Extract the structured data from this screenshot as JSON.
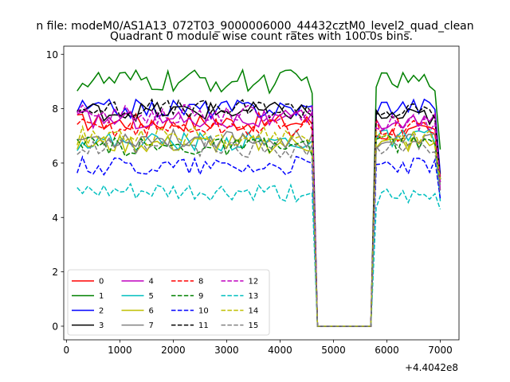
{
  "figure": {
    "suptitle": "n file: modeM0/AS1A13_072T03_9000006000_44432cztM0_level2_quad_clean",
    "offset_label": "+4.4042e8"
  },
  "chart_data": {
    "type": "line",
    "title": "Quadrant 0 module wise count rates with 100.0s bins.",
    "xlabel": "",
    "ylabel": "",
    "xlim": [
      -50,
      7350
    ],
    "ylim": [
      -0.5,
      10.3
    ],
    "x_offset": 440420000,
    "xticks": [
      0,
      1000,
      2000,
      3000,
      4000,
      5000,
      6000,
      7000
    ],
    "yticks": [
      0,
      2,
      4,
      6,
      8,
      10
    ],
    "grid": false,
    "legend_position": "lower-left",
    "legend_columns": 4,
    "x_start": 200,
    "x_step": 100,
    "on1_end": 4600,
    "gap_low": 4700,
    "gap_high": 5700,
    "on2_start": 5800,
    "on2_end": 7000,
    "series": [
      {
        "name": "0",
        "color": "#ff0000",
        "dash": "solid",
        "level1": 7.5,
        "level2": 7.1,
        "end": 5.5
      },
      {
        "name": "1",
        "color": "#008000",
        "dash": "solid",
        "level1": 9.0,
        "level2": 9.0,
        "end": 6.5
      },
      {
        "name": "2",
        "color": "#0000ff",
        "dash": "solid",
        "level1": 8.0,
        "level2": 8.1,
        "end": 5.6
      },
      {
        "name": "3",
        "color": "#000000",
        "dash": "solid",
        "level1": 7.9,
        "level2": 7.7,
        "end": 5.4
      },
      {
        "name": "4",
        "color": "#bf00bf",
        "dash": "solid",
        "level1": 7.6,
        "level2": 7.5,
        "end": 5.0
      },
      {
        "name": "5",
        "color": "#00bfbf",
        "dash": "solid",
        "level1": 6.8,
        "level2": 6.9,
        "end": 4.6
      },
      {
        "name": "6",
        "color": "#bfbf00",
        "dash": "solid",
        "level1": 6.7,
        "level2": 6.7,
        "end": 5.3
      },
      {
        "name": "7",
        "color": "#808080",
        "dash": "solid",
        "level1": 6.9,
        "level2": 6.8,
        "end": 5.2
      },
      {
        "name": "8",
        "color": "#ff0000",
        "dash": "dashed",
        "level1": 7.3,
        "level2": 7.3,
        "end": 5.5
      },
      {
        "name": "9",
        "color": "#008000",
        "dash": "dashed",
        "level1": 6.6,
        "level2": 6.7,
        "end": 5.3
      },
      {
        "name": "10",
        "color": "#0000ff",
        "dash": "dashed",
        "level1": 5.9,
        "level2": 5.9,
        "end": 4.7
      },
      {
        "name": "11",
        "color": "#000000",
        "dash": "dashed",
        "level1": 8.0,
        "level2": 7.9,
        "end": 5.4
      },
      {
        "name": "12",
        "color": "#bf00bf",
        "dash": "dashed",
        "level1": 7.8,
        "level2": 7.5,
        "end": 5.3
      },
      {
        "name": "13",
        "color": "#00bfbf",
        "dash": "dashed",
        "level1": 4.9,
        "level2": 4.7,
        "end": 4.3
      },
      {
        "name": "14",
        "color": "#bfbf00",
        "dash": "dashed",
        "level1": 7.0,
        "level2": 6.9,
        "end": 5.4
      },
      {
        "name": "15",
        "color": "#808080",
        "dash": "dashed",
        "level1": 6.5,
        "level2": 6.5,
        "end": 4.9
      }
    ]
  }
}
